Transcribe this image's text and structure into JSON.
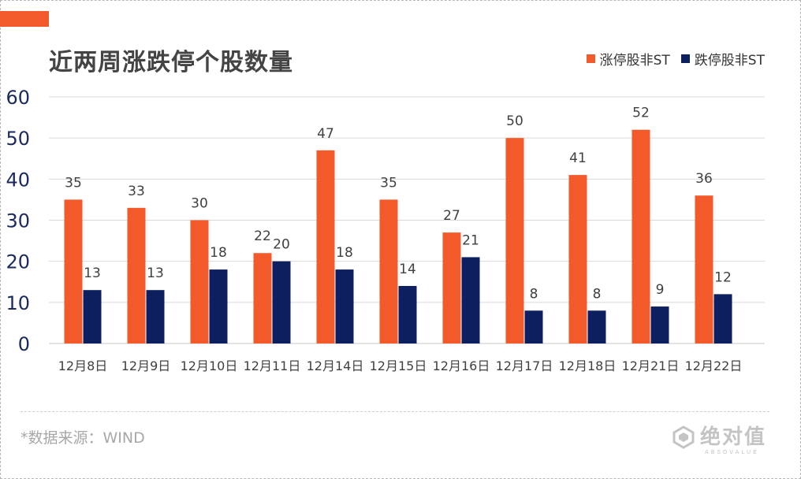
{
  "title": "近两周涨跌停个股数量",
  "source": "*数据来源：WIND",
  "logo": {
    "text": "绝对值",
    "subtext": "ABSOVALUE"
  },
  "colors": {
    "accent": "#f35a2b",
    "series1": "#f35a2b",
    "series2": "#0e1f5f",
    "axis": "#1a2a5e",
    "grid": "#d9d9d9"
  },
  "chart_data": {
    "type": "bar",
    "title": "近两周涨跌停个股数量",
    "xlabel": "",
    "ylabel": "",
    "ylim": [
      0,
      60
    ],
    "yticks": [
      0,
      10,
      20,
      30,
      40,
      50,
      60
    ],
    "grid": true,
    "legend_position": "top-right",
    "categories": [
      "12月8日",
      "12月9日",
      "12月10日",
      "12月11日",
      "12月14日",
      "12月15日",
      "12月16日",
      "12月17日",
      "12月18日",
      "12月21日",
      "12月22日"
    ],
    "series": [
      {
        "name": "涨停股非ST",
        "color": "#f35a2b",
        "values": [
          35,
          33,
          30,
          22,
          47,
          35,
          27,
          50,
          41,
          52,
          36
        ]
      },
      {
        "name": "跌停股非ST",
        "color": "#0e1f5f",
        "values": [
          13,
          13,
          18,
          20,
          18,
          14,
          21,
          8,
          8,
          9,
          12
        ]
      }
    ]
  }
}
